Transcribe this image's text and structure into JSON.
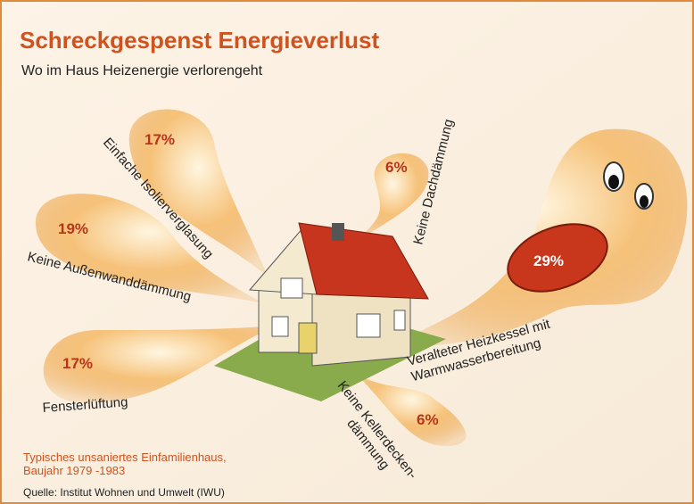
{
  "header": {
    "title": "Schreckgespenst Energieverlust",
    "subtitle": "Wo im Haus Heizenergie verlorengeht"
  },
  "items": [
    {
      "value_label": "17%",
      "label_lines": [
        "Einfache Isolierverglasung"
      ]
    },
    {
      "value_label": "19%",
      "label_lines": [
        "Keine Außenwanddämmung"
      ]
    },
    {
      "value_label": "17%",
      "label_lines": [
        "Fensterlüftung"
      ]
    },
    {
      "value_label": "6%",
      "label_lines": [
        "Keine Dachdämmung"
      ]
    },
    {
      "value_label": "29%",
      "label_lines": [
        "Veralteter Heizkessel mit",
        "Warmwasserbereitung"
      ]
    },
    {
      "value_label": "6%",
      "label_lines": [
        "Keine Kellerdecken-",
        "dämmung"
      ]
    }
  ],
  "note": [
    "Typisches unsaniertes Einfamilienhaus,",
    "Baujahr 1979 -1983"
  ],
  "source": "Quelle: Institut Wohnen und Umwelt (IWU)"
}
